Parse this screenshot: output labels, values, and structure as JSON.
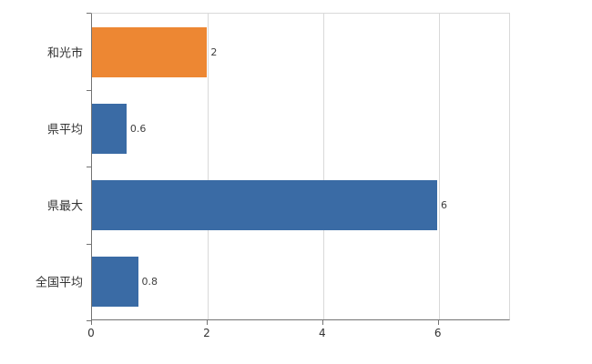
{
  "chart_data": {
    "type": "bar",
    "orientation": "horizontal",
    "title": "",
    "xlabel": "",
    "ylabel": "",
    "categories": [
      "和光市",
      "県平均",
      "県最大",
      "全国平均"
    ],
    "values": [
      2,
      0.6,
      6,
      0.8
    ],
    "value_labels": [
      "2",
      "0.6",
      "6",
      "0.8"
    ],
    "bar_colors": [
      "#ED8733",
      "#3A6BA5",
      "#3A6BA5",
      "#3A6BA5"
    ],
    "x_ticks": [
      0,
      2,
      4,
      6
    ],
    "x_tick_labels": [
      "0",
      "2",
      "4",
      "6"
    ],
    "xlim": [
      0,
      7.25
    ],
    "grid": true,
    "legend": "none"
  },
  "colors": {
    "bar_orange": "#ED8733",
    "bar_blue": "#3A6BA5",
    "gridline": "#D9D9D9",
    "axis": "#737373",
    "background": "#FFFFFF"
  }
}
